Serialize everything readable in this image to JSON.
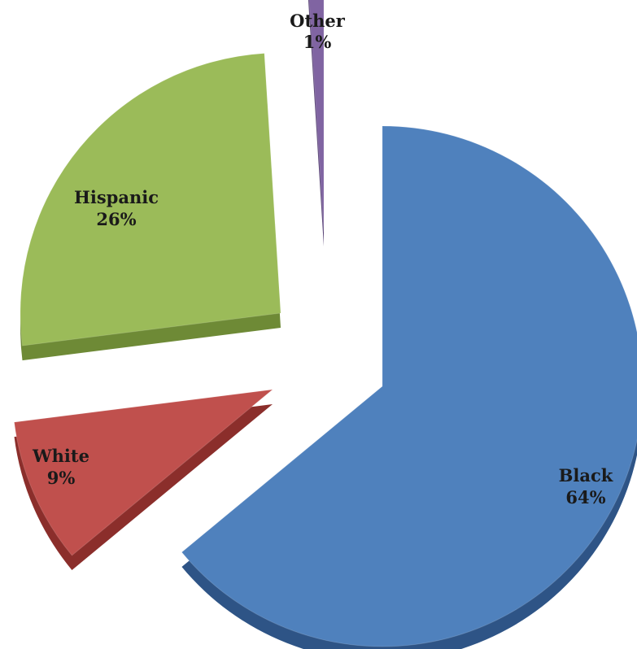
{
  "chart_data": {
    "type": "pie",
    "title": "",
    "slices": [
      {
        "label": "Black",
        "value": 64,
        "value_label": "64%",
        "color": "#4F81BD",
        "side_color": "#2E5486"
      },
      {
        "label": "White",
        "value": 9,
        "value_label": "9%",
        "color": "#C0504D",
        "side_color": "#8B2E2B"
      },
      {
        "label": "Hispanic",
        "value": 26,
        "value_label": "26%",
        "color": "#9BBB59",
        "side_color": "#6E8A36"
      },
      {
        "label": "Other",
        "value": 1,
        "value_label": "1%",
        "color": "#8064A2",
        "side_color": "#5A4577"
      }
    ],
    "exploded": true,
    "perspective": "3d",
    "legend": "none"
  }
}
